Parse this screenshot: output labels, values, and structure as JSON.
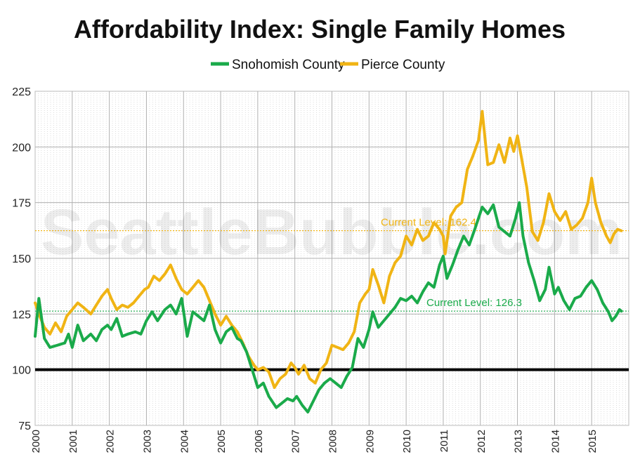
{
  "chart_data": {
    "type": "line",
    "title": "Affordability Index: Single Family Homes",
    "watermark": "SeattleBubble.com",
    "ylim": [
      75,
      225
    ],
    "yticks": [
      75,
      100,
      125,
      150,
      175,
      200,
      225
    ],
    "xlim": [
      2000,
      2016
    ],
    "xticks": [
      "2000",
      "2001",
      "2002",
      "2003",
      "2004",
      "2005",
      "2006",
      "2007",
      "2008",
      "2009",
      "2010",
      "2011",
      "2012",
      "2013",
      "2014",
      "2015"
    ],
    "baseline": 100,
    "grid": true,
    "legend_position": "top-center",
    "series": [
      {
        "name": "Snohomish County",
        "color": "#1aaa4a",
        "current_label": "Current Level: 126.3",
        "current_value": 126.3,
        "points": [
          [
            2000.0,
            115
          ],
          [
            2000.1,
            132
          ],
          [
            2000.25,
            114
          ],
          [
            2000.4,
            110
          ],
          [
            2000.6,
            111
          ],
          [
            2000.8,
            112
          ],
          [
            2000.9,
            116
          ],
          [
            2001.0,
            110
          ],
          [
            2001.15,
            120
          ],
          [
            2001.3,
            113
          ],
          [
            2001.5,
            116
          ],
          [
            2001.65,
            113
          ],
          [
            2001.8,
            118
          ],
          [
            2001.95,
            120
          ],
          [
            2002.05,
            118
          ],
          [
            2002.2,
            123
          ],
          [
            2002.35,
            115
          ],
          [
            2002.5,
            116
          ],
          [
            2002.7,
            117
          ],
          [
            2002.85,
            116
          ],
          [
            2003.0,
            122
          ],
          [
            2003.15,
            126
          ],
          [
            2003.3,
            122
          ],
          [
            2003.5,
            127
          ],
          [
            2003.65,
            129
          ],
          [
            2003.8,
            125
          ],
          [
            2003.95,
            132
          ],
          [
            2004.1,
            115
          ],
          [
            2004.25,
            126
          ],
          [
            2004.4,
            124
          ],
          [
            2004.55,
            122
          ],
          [
            2004.7,
            129
          ],
          [
            2004.85,
            118
          ],
          [
            2005.0,
            112
          ],
          [
            2005.15,
            117
          ],
          [
            2005.3,
            119
          ],
          [
            2005.45,
            114
          ],
          [
            2005.55,
            113
          ],
          [
            2005.7,
            108
          ],
          [
            2005.85,
            100
          ],
          [
            2006.0,
            92
          ],
          [
            2006.15,
            94
          ],
          [
            2006.3,
            88
          ],
          [
            2006.5,
            83
          ],
          [
            2006.65,
            85
          ],
          [
            2006.8,
            87
          ],
          [
            2006.95,
            86
          ],
          [
            2007.05,
            88
          ],
          [
            2007.2,
            84
          ],
          [
            2007.35,
            81
          ],
          [
            2007.5,
            86
          ],
          [
            2007.65,
            91
          ],
          [
            2007.8,
            94
          ],
          [
            2007.95,
            96
          ],
          [
            2008.1,
            94
          ],
          [
            2008.25,
            92
          ],
          [
            2008.4,
            97
          ],
          [
            2008.55,
            101
          ],
          [
            2008.7,
            114
          ],
          [
            2008.85,
            110
          ],
          [
            2009.0,
            118
          ],
          [
            2009.1,
            126
          ],
          [
            2009.25,
            119
          ],
          [
            2009.4,
            122
          ],
          [
            2009.55,
            125
          ],
          [
            2009.7,
            128
          ],
          [
            2009.85,
            132
          ],
          [
            2010.0,
            131
          ],
          [
            2010.15,
            133
          ],
          [
            2010.3,
            130
          ],
          [
            2010.45,
            135
          ],
          [
            2010.6,
            139
          ],
          [
            2010.75,
            137
          ],
          [
            2010.9,
            147
          ],
          [
            2011.0,
            151
          ],
          [
            2011.1,
            141
          ],
          [
            2011.25,
            147
          ],
          [
            2011.4,
            154
          ],
          [
            2011.55,
            160
          ],
          [
            2011.7,
            156
          ],
          [
            2011.85,
            163
          ],
          [
            2011.95,
            168
          ],
          [
            2012.05,
            173
          ],
          [
            2012.2,
            170
          ],
          [
            2012.35,
            174
          ],
          [
            2012.5,
            164
          ],
          [
            2012.65,
            162
          ],
          [
            2012.8,
            160
          ],
          [
            2012.95,
            168
          ],
          [
            2013.05,
            175
          ],
          [
            2013.15,
            160
          ],
          [
            2013.3,
            148
          ],
          [
            2013.45,
            140
          ],
          [
            2013.6,
            131
          ],
          [
            2013.75,
            136
          ],
          [
            2013.85,
            146
          ],
          [
            2014.0,
            134
          ],
          [
            2014.1,
            137
          ],
          [
            2014.25,
            131
          ],
          [
            2014.4,
            127
          ],
          [
            2014.55,
            132
          ],
          [
            2014.7,
            133
          ],
          [
            2014.85,
            137
          ],
          [
            2015.0,
            140
          ],
          [
            2015.15,
            136
          ],
          [
            2015.3,
            130
          ],
          [
            2015.45,
            126
          ],
          [
            2015.55,
            122
          ],
          [
            2015.65,
            124
          ],
          [
            2015.75,
            127
          ],
          [
            2015.8,
            126.3
          ]
        ]
      },
      {
        "name": "Pierce County",
        "color": "#f0b414",
        "current_label": "Current Level: 162.4",
        "current_value": 162.4,
        "points": [
          [
            2000.0,
            130
          ],
          [
            2000.1,
            125
          ],
          [
            2000.25,
            119
          ],
          [
            2000.4,
            116
          ],
          [
            2000.55,
            121
          ],
          [
            2000.7,
            117
          ],
          [
            2000.85,
            124
          ],
          [
            2001.0,
            127
          ],
          [
            2001.15,
            130
          ],
          [
            2001.3,
            128
          ],
          [
            2001.5,
            125
          ],
          [
            2001.65,
            129
          ],
          [
            2001.8,
            133
          ],
          [
            2001.95,
            136
          ],
          [
            2002.05,
            132
          ],
          [
            2002.2,
            127
          ],
          [
            2002.35,
            129
          ],
          [
            2002.5,
            128
          ],
          [
            2002.65,
            130
          ],
          [
            2002.8,
            133
          ],
          [
            2002.95,
            136
          ],
          [
            2003.05,
            137
          ],
          [
            2003.2,
            142
          ],
          [
            2003.35,
            140
          ],
          [
            2003.5,
            143
          ],
          [
            2003.65,
            147
          ],
          [
            2003.8,
            141
          ],
          [
            2003.95,
            136
          ],
          [
            2004.1,
            134
          ],
          [
            2004.25,
            137
          ],
          [
            2004.4,
            140
          ],
          [
            2004.55,
            137
          ],
          [
            2004.7,
            131
          ],
          [
            2004.85,
            125
          ],
          [
            2005.0,
            120
          ],
          [
            2005.15,
            124
          ],
          [
            2005.3,
            120
          ],
          [
            2005.45,
            117
          ],
          [
            2005.6,
            112
          ],
          [
            2005.75,
            106
          ],
          [
            2005.9,
            102
          ],
          [
            2006.0,
            100
          ],
          [
            2006.15,
            101
          ],
          [
            2006.3,
            99
          ],
          [
            2006.45,
            92
          ],
          [
            2006.6,
            96
          ],
          [
            2006.75,
            98
          ],
          [
            2006.9,
            103
          ],
          [
            2007.0,
            101
          ],
          [
            2007.1,
            98
          ],
          [
            2007.25,
            102
          ],
          [
            2007.4,
            96
          ],
          [
            2007.55,
            94
          ],
          [
            2007.7,
            100
          ],
          [
            2007.85,
            103
          ],
          [
            2008.0,
            111
          ],
          [
            2008.15,
            110
          ],
          [
            2008.3,
            109
          ],
          [
            2008.45,
            112
          ],
          [
            2008.6,
            117
          ],
          [
            2008.75,
            130
          ],
          [
            2008.9,
            134
          ],
          [
            2009.0,
            136
          ],
          [
            2009.1,
            145
          ],
          [
            2009.25,
            138
          ],
          [
            2009.4,
            130
          ],
          [
            2009.55,
            142
          ],
          [
            2009.7,
            148
          ],
          [
            2009.85,
            151
          ],
          [
            2010.0,
            160
          ],
          [
            2010.15,
            156
          ],
          [
            2010.3,
            163
          ],
          [
            2010.45,
            158
          ],
          [
            2010.6,
            160
          ],
          [
            2010.75,
            166
          ],
          [
            2010.9,
            163
          ],
          [
            2011.0,
            160
          ],
          [
            2011.05,
            152
          ],
          [
            2011.2,
            169
          ],
          [
            2011.35,
            173
          ],
          [
            2011.5,
            175
          ],
          [
            2011.65,
            190
          ],
          [
            2011.8,
            196
          ],
          [
            2011.95,
            203
          ],
          [
            2012.05,
            216
          ],
          [
            2012.2,
            192
          ],
          [
            2012.35,
            193
          ],
          [
            2012.5,
            201
          ],
          [
            2012.65,
            193
          ],
          [
            2012.8,
            204
          ],
          [
            2012.9,
            198
          ],
          [
            2013.0,
            205
          ],
          [
            2013.1,
            196
          ],
          [
            2013.25,
            182
          ],
          [
            2013.4,
            162
          ],
          [
            2013.55,
            158
          ],
          [
            2013.7,
            166
          ],
          [
            2013.85,
            179
          ],
          [
            2014.0,
            171
          ],
          [
            2014.15,
            167
          ],
          [
            2014.3,
            171
          ],
          [
            2014.45,
            163
          ],
          [
            2014.6,
            165
          ],
          [
            2014.75,
            168
          ],
          [
            2014.9,
            175
          ],
          [
            2015.0,
            186
          ],
          [
            2015.1,
            175
          ],
          [
            2015.25,
            166
          ],
          [
            2015.4,
            160
          ],
          [
            2015.5,
            157
          ],
          [
            2015.6,
            161
          ],
          [
            2015.7,
            163
          ],
          [
            2015.8,
            162.4
          ]
        ]
      }
    ]
  }
}
